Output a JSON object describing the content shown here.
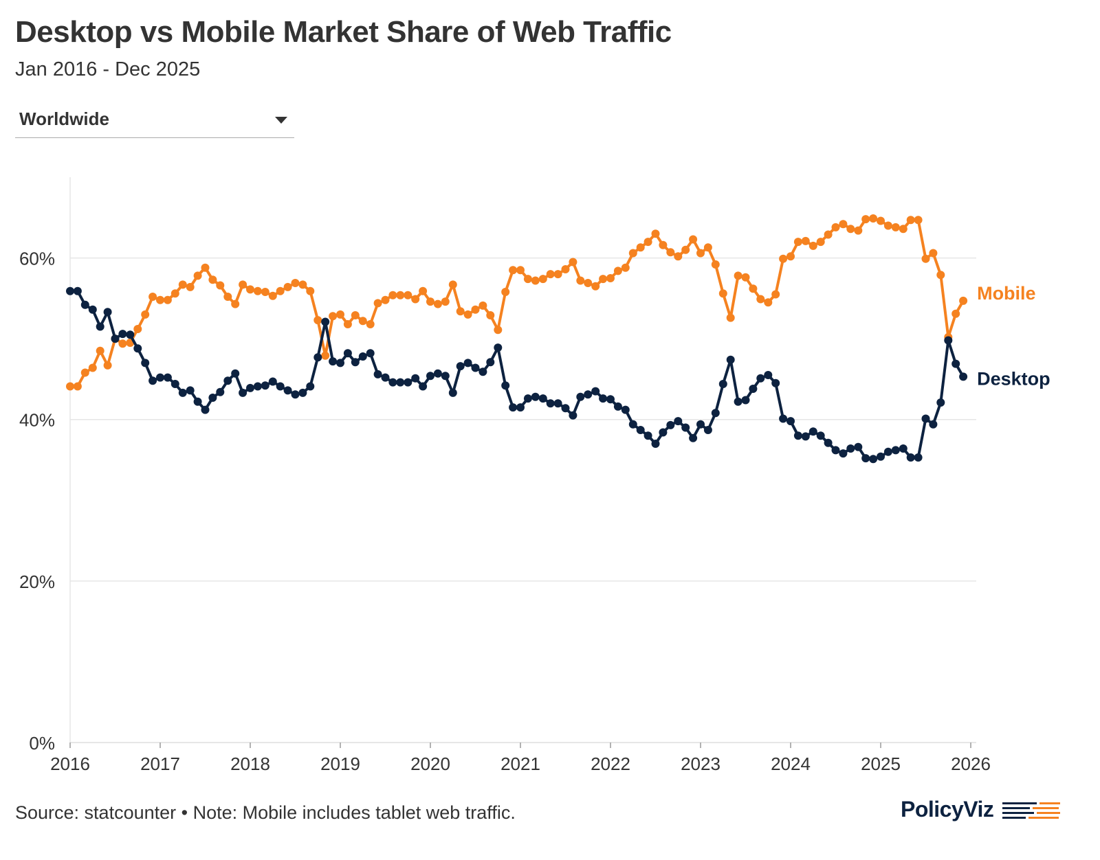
{
  "header": {
    "title": "Desktop vs Mobile Market Share of Web Traffic",
    "subtitle": "Jan 2016 - Dec 2025"
  },
  "region_select": {
    "value": "Worldwide",
    "icon": "caret-down-icon"
  },
  "footer": {
    "source_note": "Source: statcounter • Note: Mobile includes tablet web traffic."
  },
  "logo": {
    "text": "PolicyViz",
    "colors": [
      "#0d2240",
      "#f58220"
    ]
  },
  "chart_data": {
    "type": "line",
    "title": "Desktop vs Mobile Market Share of Web Traffic",
    "subtitle": "Jan 2016 - Dec 2025",
    "x_start": "2016-01",
    "x_end": "2025-12",
    "xticks": [
      "2016",
      "2017",
      "2018",
      "2019",
      "2020",
      "2021",
      "2022",
      "2023",
      "2024",
      "2025",
      "2026"
    ],
    "yticks": [
      "0%",
      "20%",
      "40%",
      "60%"
    ],
    "ylim": [
      0,
      70
    ],
    "grid": "horizontal",
    "legend": "direct labels at line ends (right)",
    "series": [
      {
        "name": "Mobile",
        "color": "#f58220",
        "values": [
          44.1,
          44.1,
          45.8,
          46.4,
          48.5,
          46.7,
          50.0,
          49.4,
          49.5,
          51.2,
          53.0,
          55.2,
          54.8,
          54.8,
          55.6,
          56.7,
          56.4,
          57.8,
          58.8,
          57.3,
          56.6,
          55.2,
          54.3,
          56.7,
          56.1,
          55.9,
          55.8,
          55.3,
          55.9,
          56.4,
          56.9,
          56.7,
          55.9,
          52.3,
          47.9,
          52.8,
          53.0,
          51.8,
          52.9,
          52.2,
          51.8,
          54.4,
          54.8,
          55.4,
          55.4,
          55.4,
          54.9,
          55.9,
          54.6,
          54.3,
          54.6,
          56.7,
          53.4,
          53.0,
          53.6,
          54.1,
          52.9,
          51.1,
          55.8,
          58.5,
          58.5,
          57.4,
          57.2,
          57.4,
          58.0,
          58.0,
          58.6,
          59.5,
          57.2,
          56.9,
          56.5,
          57.4,
          57.5,
          58.4,
          58.8,
          60.6,
          61.3,
          62.0,
          63.0,
          61.6,
          60.7,
          60.2,
          61.0,
          62.3,
          60.6,
          61.3,
          59.2,
          55.6,
          52.6,
          57.8,
          57.6,
          56.2,
          54.9,
          54.5,
          55.5,
          59.9,
          60.2,
          62.0,
          62.1,
          61.5,
          62.0,
          62.9,
          63.8,
          64.2,
          63.6,
          63.4,
          64.8,
          64.9,
          64.6,
          64.0,
          63.8,
          63.6,
          64.7,
          64.7,
          59.9,
          60.6,
          57.9,
          50.2,
          53.1,
          54.7
        ]
      },
      {
        "name": "Desktop",
        "color": "#0d2240",
        "values": [
          55.9,
          55.9,
          54.2,
          53.6,
          51.5,
          53.3,
          50.0,
          50.6,
          50.5,
          48.8,
          47.0,
          44.8,
          45.2,
          45.2,
          44.4,
          43.3,
          43.6,
          42.2,
          41.2,
          42.7,
          43.4,
          44.8,
          45.7,
          43.3,
          43.9,
          44.1,
          44.2,
          44.7,
          44.1,
          43.6,
          43.1,
          43.3,
          44.1,
          47.7,
          52.1,
          47.2,
          47.0,
          48.2,
          47.1,
          47.8,
          48.2,
          45.6,
          45.2,
          44.6,
          44.6,
          44.6,
          45.1,
          44.1,
          45.4,
          45.7,
          45.4,
          43.3,
          46.6,
          47.0,
          46.4,
          45.9,
          47.1,
          48.9,
          44.2,
          41.5,
          41.5,
          42.6,
          42.8,
          42.6,
          42.0,
          42.0,
          41.4,
          40.5,
          42.8,
          43.1,
          43.5,
          42.6,
          42.5,
          41.6,
          41.2,
          39.4,
          38.7,
          38.0,
          37.0,
          38.4,
          39.3,
          39.8,
          39.0,
          37.7,
          39.4,
          38.7,
          40.8,
          44.4,
          47.4,
          42.2,
          42.4,
          43.8,
          45.1,
          45.5,
          44.5,
          40.1,
          39.8,
          38.0,
          37.9,
          38.5,
          38.0,
          37.1,
          36.2,
          35.8,
          36.4,
          36.6,
          35.2,
          35.1,
          35.4,
          36.0,
          36.2,
          36.4,
          35.3,
          35.3,
          40.1,
          39.4,
          42.1,
          49.8,
          46.9,
          45.3
        ]
      }
    ]
  }
}
